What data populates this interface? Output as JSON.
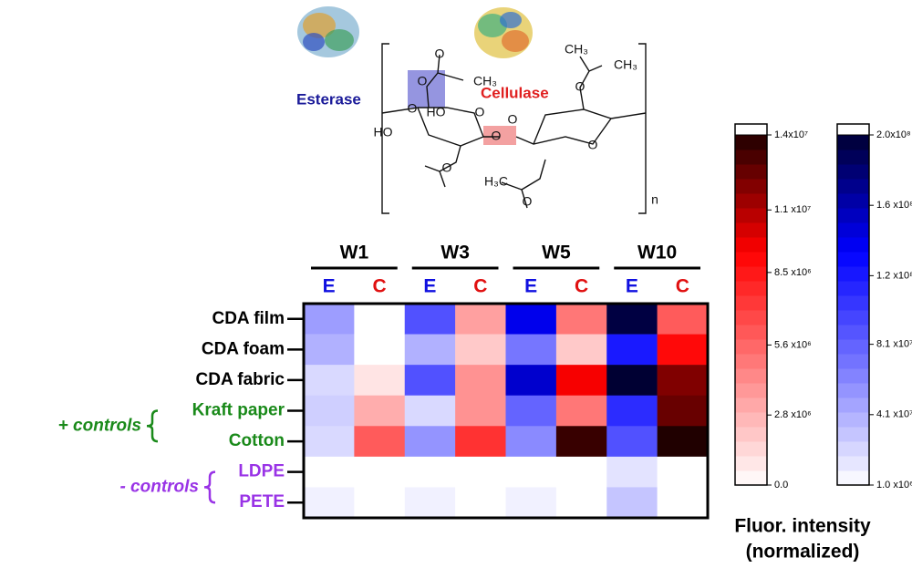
{
  "chart_data": {
    "type": "heatmap",
    "groups": [
      "W1",
      "W3",
      "W5",
      "W10"
    ],
    "rows": [
      "CDA film",
      "CDA foam",
      "CDA fabric",
      "Kraft paper",
      "Cotton",
      "LDPE",
      "PETE"
    ],
    "row_colors": [
      "#000000",
      "#000000",
      "#000000",
      "#1a8a1a",
      "#1a8a1a",
      "#9933e6",
      "#9933e6"
    ],
    "row_groups": [
      {
        "label": "+ controls",
        "color": "#1a8a1a",
        "rows": [
          3,
          4
        ]
      },
      {
        "label": "- controls",
        "color": "#9933e6",
        "rows": [
          5,
          6
        ]
      }
    ],
    "series": [
      {
        "name": "E",
        "color": "#1010e0",
        "colorscale": [
          "#ffffff",
          "#7b7bff",
          "#0000ff",
          "#000033"
        ],
        "lim": [
          1000000,
          200000000
        ],
        "ticks": [
          {
            "value": 1000000,
            "label": "1.0 x10⁶"
          },
          {
            "value": 41000000,
            "label": "4.1 x10⁷"
          },
          {
            "value": 81000000,
            "label": "8.1 x10⁷"
          },
          {
            "value": 120000000,
            "label": "1.2 x10⁸"
          },
          {
            "value": 160000000,
            "label": "1.6 x10⁸"
          },
          {
            "value": 200000000,
            "label": "2.0x10⁸"
          }
        ],
        "values": [
          [
            50000000,
            90000000,
            140000000,
            195000000
          ],
          [
            40000000,
            40000000,
            70000000,
            120000000
          ],
          [
            20000000,
            90000000,
            150000000,
            200000000
          ],
          [
            25000000,
            20000000,
            80000000,
            110000000
          ],
          [
            20000000,
            55000000,
            60000000,
            90000000
          ],
          [
            1000000,
            1000000,
            1000000,
            15000000
          ],
          [
            8000000,
            8000000,
            8000000,
            30000000
          ]
        ]
      },
      {
        "name": "C",
        "color": "#e01010",
        "colorscale": [
          "#ffffff",
          "#ff8080",
          "#ff0000",
          "#200000"
        ],
        "lim": [
          0,
          14000000
        ],
        "ticks": [
          {
            "value": 0,
            "label": "0.0"
          },
          {
            "value": 2800000,
            "label": "2.8 x10⁶"
          },
          {
            "value": 5600000,
            "label": "5.6 x10⁶"
          },
          {
            "value": 8500000,
            "label": "8.5 x10⁶"
          },
          {
            "value": 11000000,
            "label": "1.1 x10⁷"
          },
          {
            "value": 14000000,
            "label": "1.4x10⁷"
          }
        ],
        "values": [
          [
            0,
            3500000,
            5000000,
            6000000
          ],
          [
            0,
            2000000,
            2000000,
            9000000
          ],
          [
            1000000,
            4000000,
            9500000,
            12000000
          ],
          [
            3000000,
            4000000,
            5000000,
            12500000
          ],
          [
            6000000,
            7500000,
            13500000,
            14000000
          ],
          [
            0,
            0,
            0,
            0
          ],
          [
            0,
            0,
            0,
            0
          ]
        ]
      }
    ],
    "colorbar_title": [
      "Fluor. intensity",
      "(normalized)"
    ],
    "structure": {
      "enzymes": [
        "Esterase",
        "Cellulase"
      ],
      "labels": [
        "O",
        "CH₃",
        "O",
        "O",
        "CH₃",
        "HO",
        "O",
        "HO",
        "O",
        "O",
        "O",
        "O",
        "CH₃",
        "H₃C",
        "O",
        "O",
        "n"
      ]
    }
  }
}
